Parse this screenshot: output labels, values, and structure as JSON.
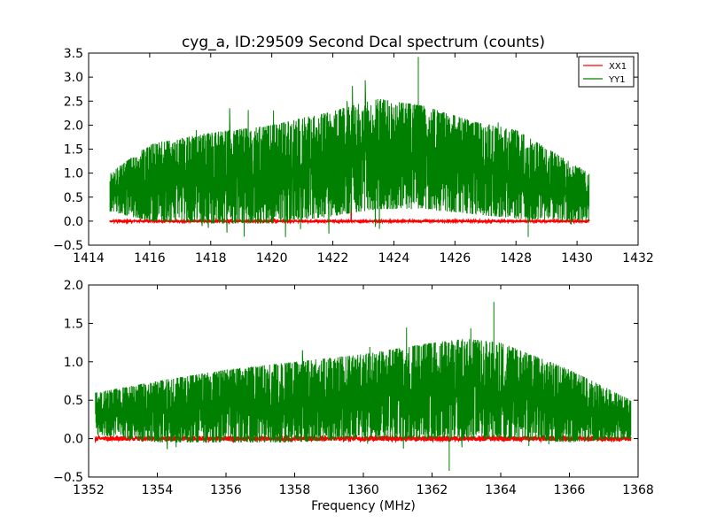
{
  "figure": {
    "title": "cyg_a, ID:29509 Second Dcal spectrum (counts)"
  },
  "chart_data": [
    {
      "type": "line",
      "title": "cyg_a, ID:29509 Second Dcal spectrum (counts)",
      "xlabel": "",
      "ylabel": "",
      "xlim": [
        1414,
        1432
      ],
      "ylim": [
        -0.5,
        3.5
      ],
      "x_ticks": [
        "1414",
        "1416",
        "1418",
        "1420",
        "1422",
        "1424",
        "1426",
        "1428",
        "1430",
        "1432"
      ],
      "y_ticks": [
        "−0.5",
        "0.0",
        "0.5",
        "1.0",
        "1.5",
        "2.0",
        "2.5",
        "3.0",
        "3.5"
      ],
      "legend": {
        "placement": "top-right",
        "entries": [
          "XX1",
          "YY1"
        ]
      },
      "grid": false,
      "series": [
        {
          "name": "XX1",
          "color": "#ff0000",
          "x_range": [
            1414.7,
            1430.4
          ],
          "mean": 0.0,
          "spread": 0.02,
          "spikes": [
            {
              "x": 1422.6,
              "y": 0.35
            }
          ]
        },
        {
          "name": "YY1",
          "color": "#008000",
          "x_range": [
            1414.7,
            1430.4
          ],
          "envelope": [
            [
              1414.7,
              0.2,
              1.0
            ],
            [
              1416,
              0.0,
              1.6
            ],
            [
              1418,
              -0.05,
              1.85
            ],
            [
              1420,
              -0.05,
              2.0
            ],
            [
              1422,
              0.1,
              2.3
            ],
            [
              1423.5,
              0.25,
              2.55
            ],
            [
              1425,
              0.25,
              2.4
            ],
            [
              1426.5,
              0.15,
              2.1
            ],
            [
              1428,
              0.05,
              1.9
            ],
            [
              1430.4,
              0.0,
              1.0
            ]
          ],
          "peak": {
            "x": 1424.8,
            "y": 3.42
          },
          "minimum": {
            "x": 1428.4,
            "y": -0.33
          }
        }
      ]
    },
    {
      "type": "line",
      "title": "",
      "xlabel": "Frequency (MHz)",
      "ylabel": "",
      "xlim": [
        1352,
        1368
      ],
      "ylim": [
        -0.5,
        2.0
      ],
      "x_ticks": [
        "1352",
        "1354",
        "1356",
        "1358",
        "1360",
        "1362",
        "1364",
        "1366",
        "1368"
      ],
      "y_ticks": [
        "−0.5",
        "0.0",
        "0.5",
        "1.0",
        "1.5",
        "2.0"
      ],
      "grid": false,
      "series": [
        {
          "name": "XX1",
          "color": "#ff0000",
          "x_range": [
            1352.2,
            1367.8
          ],
          "mean": 0.0,
          "spread": 0.03
        },
        {
          "name": "YY1",
          "color": "#008000",
          "x_range": [
            1352.2,
            1367.8
          ],
          "envelope": [
            [
              1352.2,
              0.05,
              0.6
            ],
            [
              1354,
              -0.05,
              0.75
            ],
            [
              1356,
              -0.05,
              0.9
            ],
            [
              1358,
              -0.05,
              1.0
            ],
            [
              1360,
              0.0,
              1.1
            ],
            [
              1362,
              0.0,
              1.25
            ],
            [
              1363,
              0.0,
              1.3
            ],
            [
              1364,
              0.0,
              1.25
            ],
            [
              1366,
              -0.05,
              0.9
            ],
            [
              1367.8,
              0.0,
              0.5
            ]
          ],
          "peak": {
            "x": 1363.8,
            "y": 1.78
          },
          "minimum": {
            "x": 1362.5,
            "y": -0.42
          }
        }
      ]
    }
  ]
}
